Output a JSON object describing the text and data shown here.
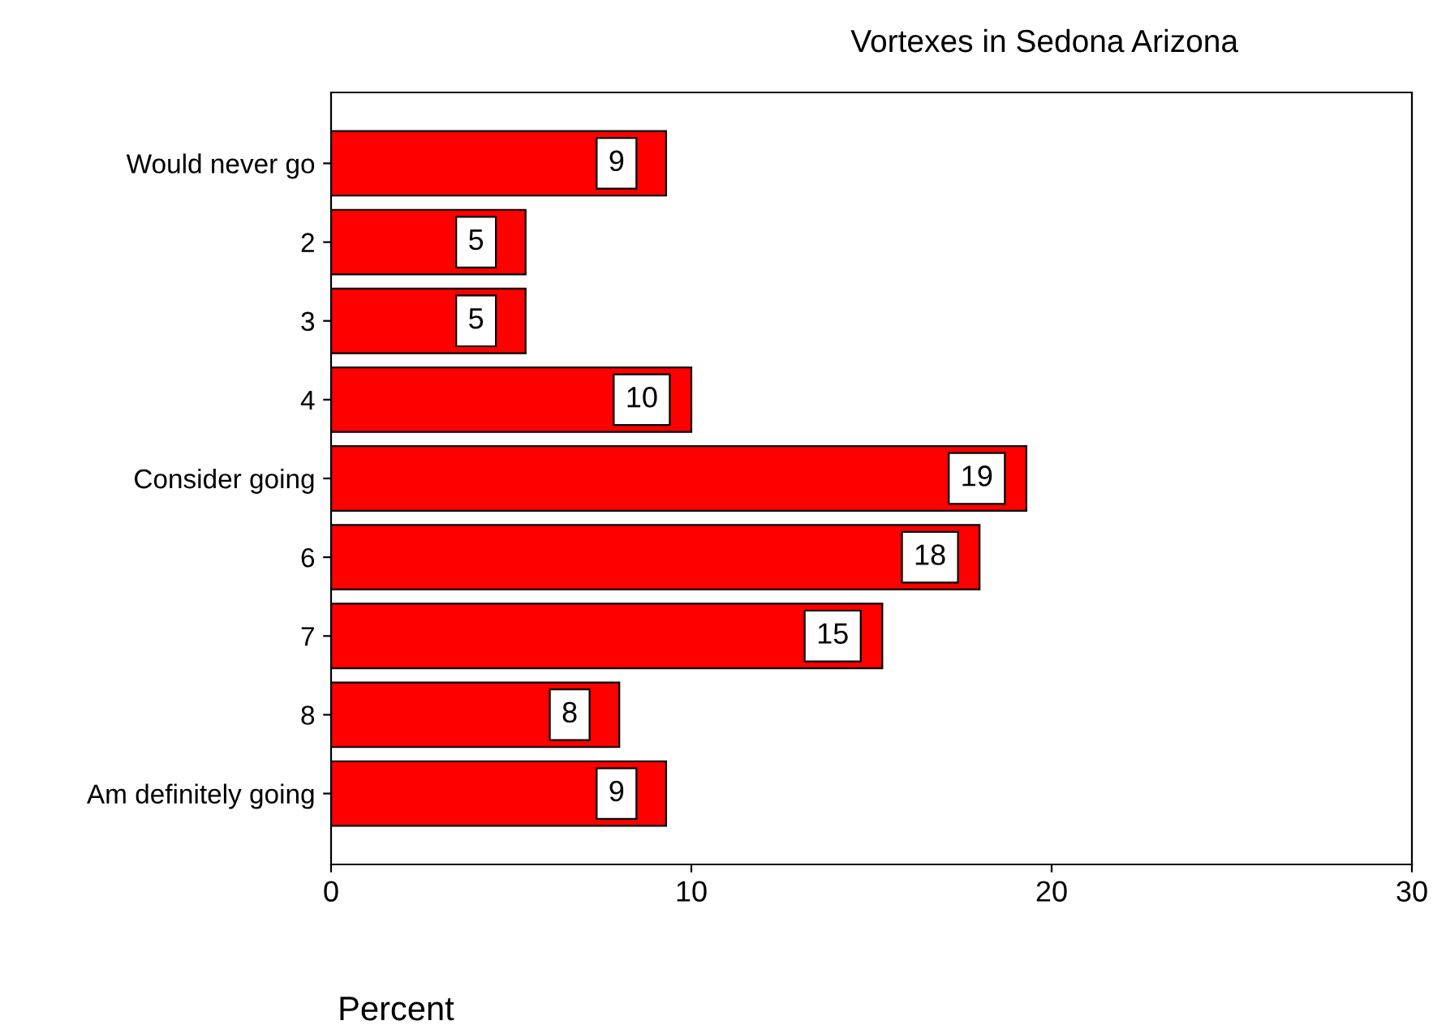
{
  "chart_data": {
    "type": "bar",
    "orientation": "horizontal",
    "title": "Vortexes in Sedona Arizona",
    "xlabel": "Percent",
    "categories": [
      "Would never go",
      "2",
      "3",
      "4",
      "Consider going",
      "6",
      "7",
      "8",
      "Am definitely going"
    ],
    "values": [
      9.3,
      5.4,
      5.4,
      10.0,
      19.3,
      18.0,
      15.3,
      8.0,
      9.3
    ],
    "value_labels": [
      "9",
      "5",
      "5",
      "10",
      "19",
      "18",
      "15",
      "8",
      "9"
    ],
    "color": "#ff0000",
    "xlim": [
      0,
      30
    ],
    "xticks": [
      0,
      10,
      20,
      30
    ],
    "grid": false,
    "legend": false
  }
}
